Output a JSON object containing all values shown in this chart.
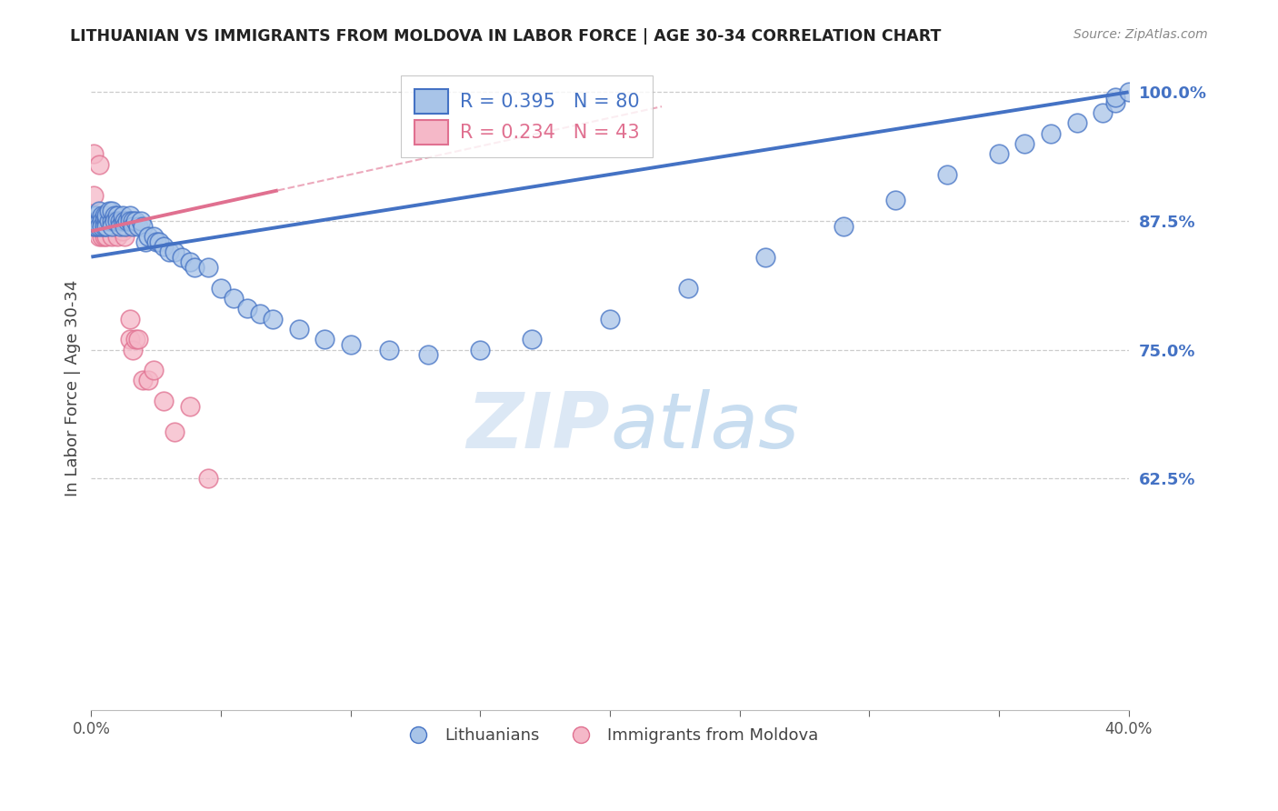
{
  "title": "LITHUANIAN VS IMMIGRANTS FROM MOLDOVA IN LABOR FORCE | AGE 30-34 CORRELATION CHART",
  "source": "Source: ZipAtlas.com",
  "ylabel": "In Labor Force | Age 30-34",
  "legend_labels": [
    "Lithuanians",
    "Immigrants from Moldova"
  ],
  "R_blue": 0.395,
  "N_blue": 80,
  "R_pink": 0.234,
  "N_pink": 43,
  "blue_fill": "#a8c4e8",
  "pink_fill": "#f5b8c8",
  "blue_edge": "#4472c4",
  "pink_edge": "#e07090",
  "blue_line": "#4472c4",
  "pink_line": "#e07090",
  "watermark_color": "#dce8f5",
  "xmin": 0.0,
  "xmax": 0.4,
  "ymin": 0.4,
  "ymax": 1.025,
  "yticks": [
    0.625,
    0.75,
    0.875,
    1.0
  ],
  "ytick_labels": [
    "62.5%",
    "75.0%",
    "87.5%",
    "100.0%"
  ],
  "blue_intercept": 0.84,
  "blue_slope": 0.4,
  "pink_intercept": 0.865,
  "pink_slope": 0.55,
  "pink_line_xmax": 0.072,
  "blue_x": [
    0.001,
    0.001,
    0.001,
    0.002,
    0.002,
    0.002,
    0.003,
    0.003,
    0.003,
    0.004,
    0.004,
    0.004,
    0.005,
    0.005,
    0.005,
    0.006,
    0.006,
    0.006,
    0.007,
    0.007,
    0.008,
    0.008,
    0.008,
    0.009,
    0.009,
    0.01,
    0.01,
    0.011,
    0.011,
    0.012,
    0.012,
    0.013,
    0.013,
    0.014,
    0.015,
    0.015,
    0.016,
    0.016,
    0.017,
    0.018,
    0.019,
    0.02,
    0.021,
    0.022,
    0.024,
    0.025,
    0.026,
    0.028,
    0.03,
    0.032,
    0.035,
    0.038,
    0.04,
    0.045,
    0.05,
    0.055,
    0.06,
    0.065,
    0.07,
    0.08,
    0.09,
    0.1,
    0.115,
    0.13,
    0.15,
    0.17,
    0.2,
    0.23,
    0.26,
    0.29,
    0.31,
    0.33,
    0.35,
    0.36,
    0.37,
    0.38,
    0.39,
    0.395,
    0.395,
    0.4
  ],
  "blue_y": [
    0.875,
    0.88,
    0.87,
    0.88,
    0.875,
    0.87,
    0.875,
    0.87,
    0.885,
    0.88,
    0.875,
    0.87,
    0.88,
    0.875,
    0.87,
    0.875,
    0.87,
    0.88,
    0.875,
    0.885,
    0.875,
    0.87,
    0.885,
    0.88,
    0.875,
    0.88,
    0.875,
    0.875,
    0.87,
    0.875,
    0.88,
    0.875,
    0.87,
    0.875,
    0.88,
    0.875,
    0.875,
    0.87,
    0.875,
    0.87,
    0.875,
    0.87,
    0.855,
    0.86,
    0.86,
    0.855,
    0.855,
    0.85,
    0.845,
    0.845,
    0.84,
    0.835,
    0.83,
    0.83,
    0.81,
    0.8,
    0.79,
    0.785,
    0.78,
    0.77,
    0.76,
    0.755,
    0.75,
    0.745,
    0.75,
    0.76,
    0.78,
    0.81,
    0.84,
    0.87,
    0.895,
    0.92,
    0.94,
    0.95,
    0.96,
    0.97,
    0.98,
    0.99,
    0.995,
    1.0
  ],
  "pink_x": [
    0.001,
    0.001,
    0.001,
    0.001,
    0.002,
    0.002,
    0.002,
    0.003,
    0.003,
    0.003,
    0.003,
    0.004,
    0.004,
    0.004,
    0.005,
    0.005,
    0.005,
    0.006,
    0.006,
    0.006,
    0.007,
    0.007,
    0.008,
    0.008,
    0.009,
    0.01,
    0.01,
    0.011,
    0.012,
    0.013,
    0.014,
    0.015,
    0.015,
    0.016,
    0.017,
    0.018,
    0.02,
    0.022,
    0.024,
    0.028,
    0.032,
    0.038,
    0.045
  ],
  "pink_y": [
    0.875,
    0.87,
    0.9,
    0.94,
    0.875,
    0.87,
    0.88,
    0.93,
    0.875,
    0.87,
    0.86,
    0.875,
    0.87,
    0.86,
    0.875,
    0.87,
    0.86,
    0.875,
    0.87,
    0.86,
    0.875,
    0.87,
    0.875,
    0.86,
    0.87,
    0.875,
    0.86,
    0.87,
    0.865,
    0.86,
    0.87,
    0.78,
    0.76,
    0.75,
    0.76,
    0.76,
    0.72,
    0.72,
    0.73,
    0.7,
    0.67,
    0.695,
    0.625
  ]
}
